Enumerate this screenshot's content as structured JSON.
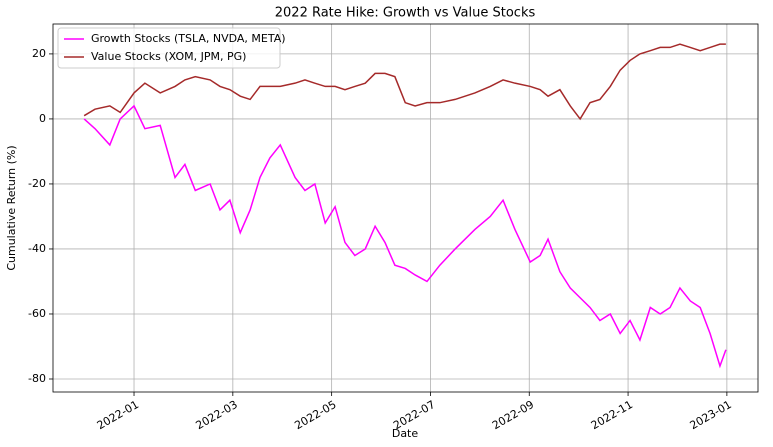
{
  "chart_data": {
    "type": "line",
    "title": "2022 Rate Hike: Growth vs Value Stocks",
    "xlabel": "Date",
    "ylabel": "Cumulative Return (%)",
    "x": [
      -1.01,
      -0.79,
      -0.49,
      -0.28,
      0,
      0.22,
      0.53,
      0.83,
      1.03,
      1.24,
      1.54,
      1.74,
      1.94,
      2.15,
      2.35,
      2.55,
      2.75,
      2.96,
      3.26,
      3.46,
      3.66,
      3.87,
      4.07,
      4.27,
      4.47,
      4.68,
      4.88,
      5.08,
      5.28,
      5.49,
      5.69,
      5.93,
      6.19,
      6.5,
      6.9,
      7.21,
      7.47,
      7.71,
      8.02,
      8.22,
      8.38,
      8.62,
      8.83,
      9.03,
      9.23,
      9.43,
      9.64,
      9.84,
      10.04,
      10.24,
      10.45,
      10.65,
      10.85,
      11.05,
      11.26,
      11.46,
      11.66,
      11.86,
      11.98
    ],
    "series": [
      {
        "name": "Growth Stocks (TSLA, NVDA, META)",
        "color": "#ff00ff",
        "values": [
          0,
          -3,
          -8,
          0,
          4,
          -3,
          -2,
          -18,
          -14,
          -22,
          -20,
          -28,
          -25,
          -35,
          -28,
          -18,
          -12,
          -8,
          -18,
          -22,
          -20,
          -32,
          -27,
          -38,
          -42,
          -40,
          -33,
          -38,
          -45,
          -46,
          -48,
          -50,
          -45,
          -40,
          -34,
          -30,
          -25,
          -34,
          -44,
          -42,
          -37,
          -47,
          -52,
          -55,
          -58,
          -62,
          -60,
          -66,
          -62,
          -68,
          -58,
          -60,
          -58,
          -52,
          -56,
          -58,
          -66,
          -76,
          -71
        ]
      },
      {
        "name": "Value Stocks (XOM, JPM, PG)",
        "color": "#a52a2a",
        "values": [
          1,
          3,
          4,
          2,
          8,
          11,
          8,
          10,
          12,
          13,
          12,
          10,
          9,
          7,
          6,
          10,
          10,
          10,
          11,
          12,
          11,
          10,
          10,
          9,
          10,
          11,
          14,
          14,
          13,
          5,
          4,
          5,
          5,
          6,
          8,
          10,
          12,
          11,
          10,
          9,
          7,
          9,
          4,
          0,
          5,
          6,
          10,
          15,
          18,
          20,
          21,
          22,
          22,
          23,
          22,
          21,
          22,
          23,
          23
        ]
      }
    ],
    "xlim": [
      -1.64,
      12.63
    ],
    "xticks": [
      {
        "value": 0,
        "label": "2022-01"
      },
      {
        "value": 2,
        "label": "2022-03"
      },
      {
        "value": 4,
        "label": "2022-05"
      },
      {
        "value": 6,
        "label": "2022-07"
      },
      {
        "value": 8,
        "label": "2022-09"
      },
      {
        "value": 10,
        "label": "2022-11"
      },
      {
        "value": 12,
        "label": "2023-01"
      }
    ],
    "ylim": [
      -84,
      29.2
    ],
    "yticks": [
      -80,
      -60,
      -40,
      -20,
      0,
      20
    ],
    "grid": true,
    "legend": "upper left"
  }
}
